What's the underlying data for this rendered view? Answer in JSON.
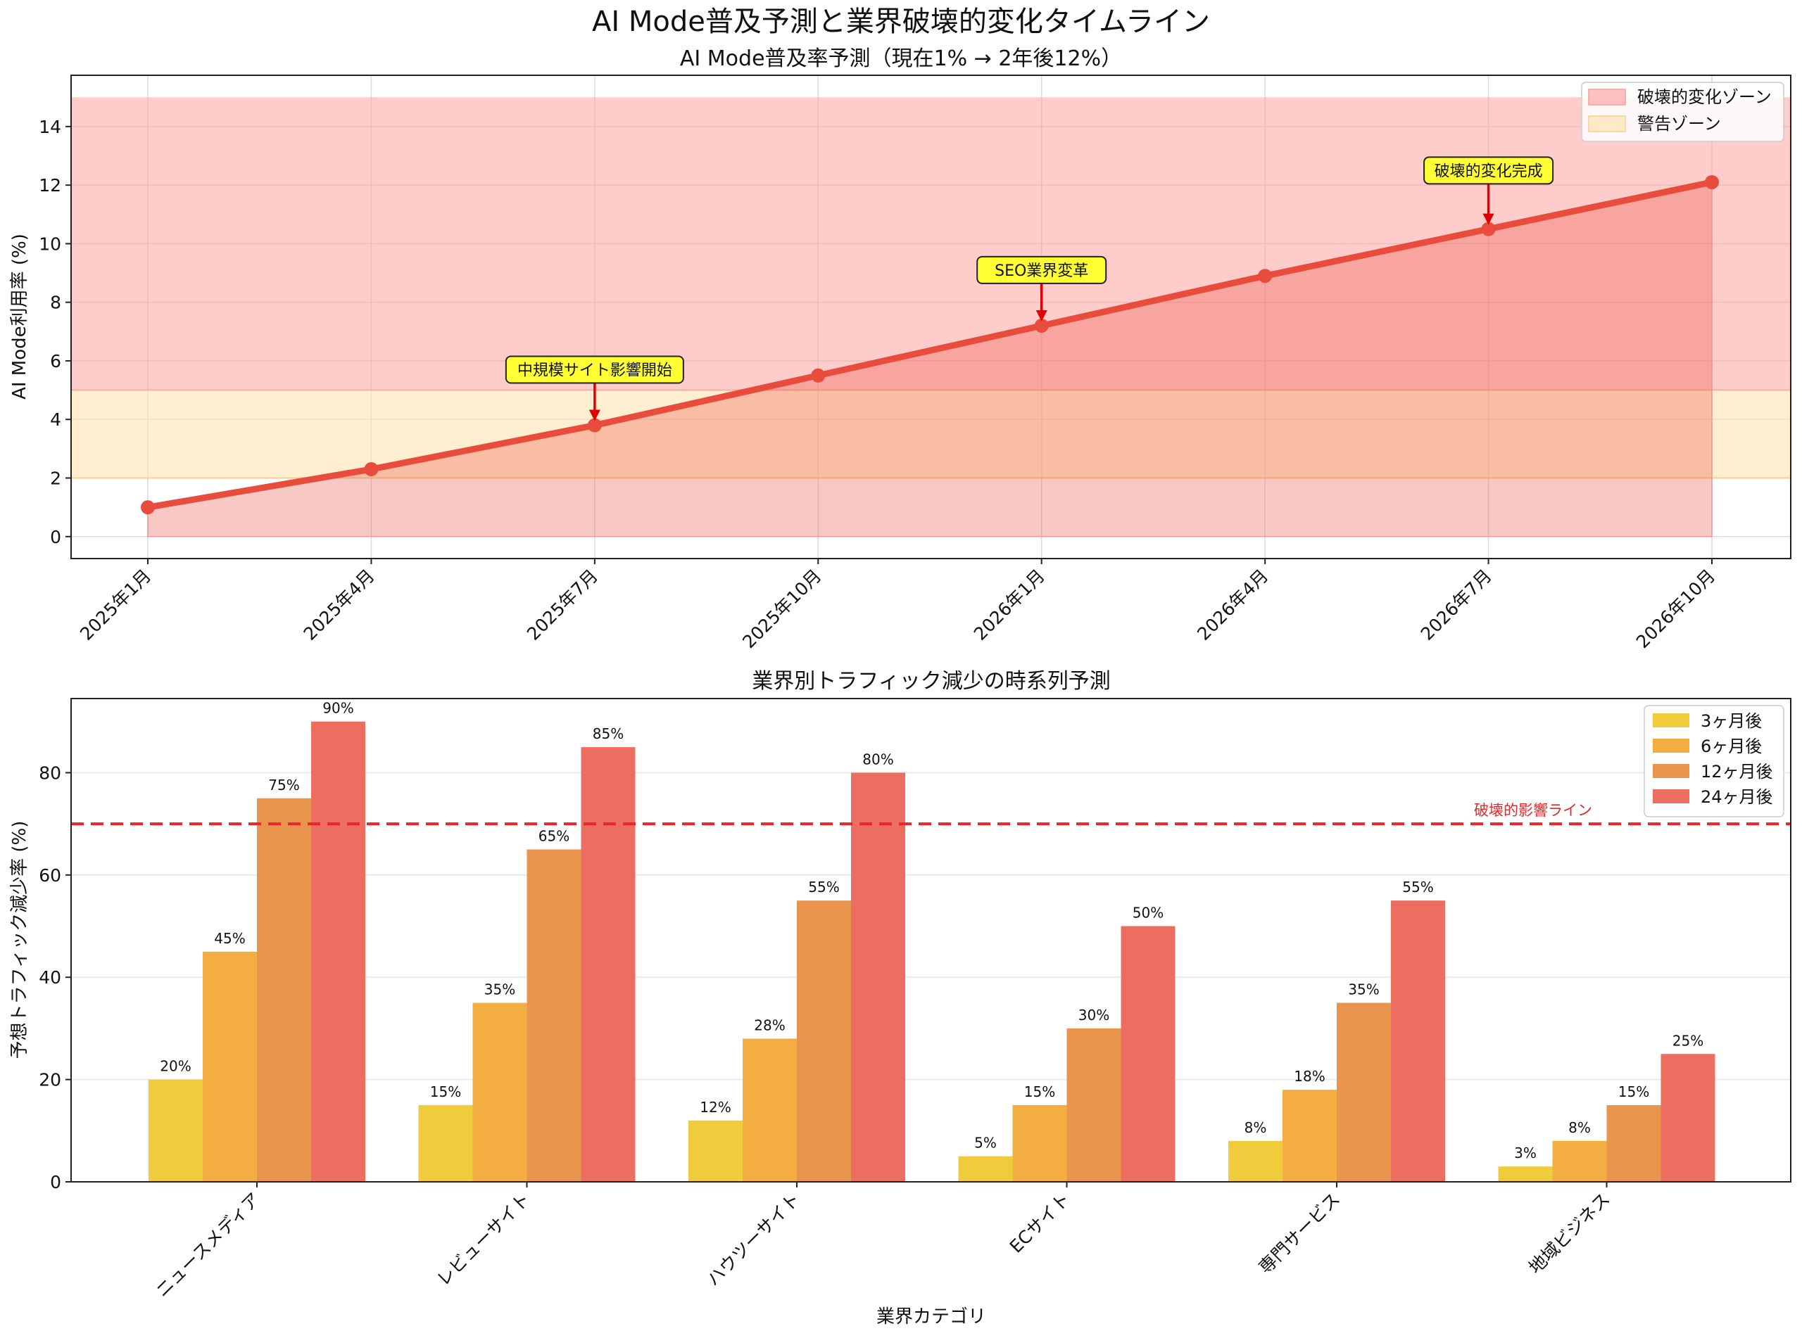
{
  "figure": {
    "suptitle": "AI Mode普及予測と業界破壊的変化タイムライン"
  },
  "chart_data": [
    {
      "type": "line",
      "title": "AI Mode普及率予測（現在1% → 2年後12%）",
      "xlabel": "",
      "ylabel": "AI Mode利用率 (%)",
      "categories": [
        "2025年1月",
        "2025年4月",
        "2025年7月",
        "2025年10月",
        "2026年1月",
        "2026年4月",
        "2026年7月",
        "2026年10月"
      ],
      "series": [
        {
          "name": "AI Mode普及率",
          "values": [
            1.0,
            2.3,
            3.8,
            5.5,
            7.2,
            8.9,
            10.5,
            12.1
          ],
          "color": "#e74c3c"
        }
      ],
      "ylim": [
        -0.75,
        15.75
      ],
      "yticks": [
        0,
        2,
        4,
        6,
        8,
        10,
        12,
        14
      ],
      "bands": [
        {
          "label": "破壊的変化ゾーン",
          "from": 5,
          "to": 15,
          "color": "#ff9999"
        },
        {
          "label": "警告ゾーン",
          "from": 2,
          "to": 5,
          "color": "#ffe0a8"
        }
      ],
      "annotations": [
        {
          "text": "中規模サイト影響開始",
          "index": 2,
          "text_y": 5.7
        },
        {
          "text": "SEO業界変革",
          "index": 4,
          "text_y": 9.1
        },
        {
          "text": "破壊的変化完成",
          "index": 6,
          "text_y": 12.5
        }
      ],
      "grid": true,
      "legend_position": "top-right"
    },
    {
      "type": "bar",
      "title": "業界別トラフィック減少の時系列予測",
      "xlabel": "業界カテゴリ",
      "ylabel": "予想トラフィック減少率 (%)",
      "categories": [
        "ニュースメディア",
        "レビューサイト",
        "ハウツーサイト",
        "ECサイト",
        "専門サービス",
        "地域ビジネス"
      ],
      "series": [
        {
          "name": "3ヶ月後",
          "values": [
            20,
            15,
            12,
            5,
            8,
            3
          ],
          "color": "#f0cc3c"
        },
        {
          "name": "6ヶ月後",
          "values": [
            45,
            35,
            28,
            15,
            18,
            8
          ],
          "color": "#f3ad41"
        },
        {
          "name": "12ヶ月後",
          "values": [
            75,
            65,
            55,
            30,
            35,
            15
          ],
          "color": "#e9954d"
        },
        {
          "name": "24ヶ月後",
          "values": [
            90,
            85,
            80,
            50,
            55,
            25
          ],
          "color": "#eb6e61"
        }
      ],
      "value_labels": [
        [
          "20%",
          "45%",
          "75%",
          "90%"
        ],
        [
          "15%",
          "35%",
          "65%",
          "85%"
        ],
        [
          "12%",
          "28%",
          "55%",
          "80%"
        ],
        [
          "5%",
          "15%",
          "30%",
          "50%"
        ],
        [
          "8%",
          "18%",
          "35%",
          "55%"
        ],
        [
          "3%",
          "8%",
          "15%",
          "25%"
        ]
      ],
      "ylim": [
        0,
        94.5
      ],
      "yticks": [
        0,
        20,
        40,
        60,
        80
      ],
      "threshold": {
        "value": 70,
        "label": "破壊的影響ライン",
        "color": "#e8262b"
      },
      "grid": true,
      "legend_position": "top-right"
    }
  ]
}
